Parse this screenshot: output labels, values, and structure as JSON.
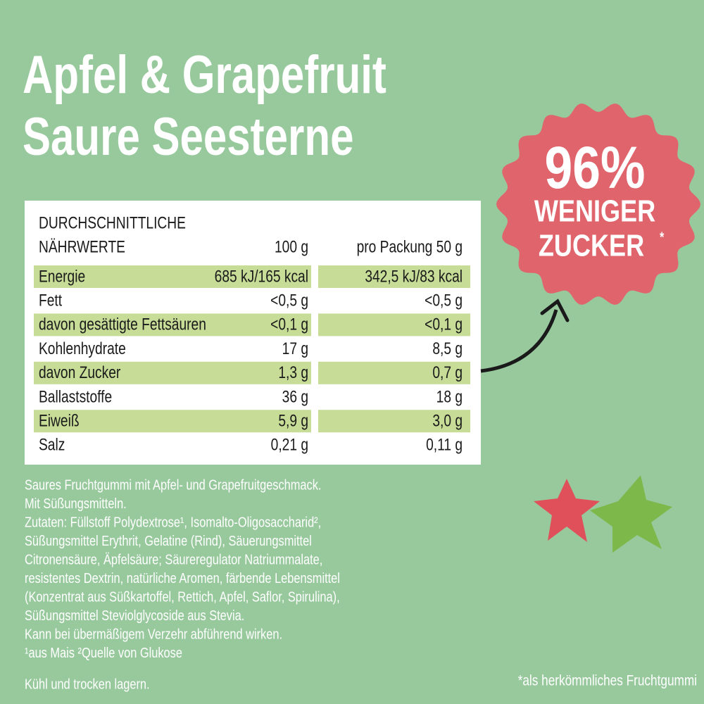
{
  "title": {
    "lines": [
      "Apfel & Grapefruit",
      "Saure Seesterne"
    ]
  },
  "table": {
    "heading": [
      "DURCHSCHNITTLICHE",
      "NÄHRWERTE"
    ],
    "columns": [
      "100 g",
      "pro Packung 50 g"
    ],
    "rows": [
      [
        "Energie",
        "685 kJ/165 kcal",
        "342,5 kJ/83 kcal"
      ],
      [
        "Fett",
        "<0,5 g",
        "<0,5 g"
      ],
      [
        "davon gesättigte Fettsäuren",
        "<0,1 g",
        "<0,1 g"
      ],
      [
        "Kohlenhydrate",
        "17 g",
        "8,5 g"
      ],
      [
        "davon Zucker",
        "1,3 g",
        "0,7 g"
      ],
      [
        "Ballaststoffe",
        "36 g",
        "18 g"
      ],
      [
        "Eiweiß",
        "5,9 g",
        "3,0 g"
      ],
      [
        "Salz",
        "0,21 g",
        "0,11 g"
      ]
    ]
  },
  "description": {
    "lines": [
      "Saures Fruchtgummi mit Apfel- und Grapefruitgeschmack.",
      "Mit Süßungsmitteln.",
      "Zutaten: Füllstoff Polydextrose¹, Isomalto-Oligosaccharid²,",
      "Süßungsmittel Erythrit, Gelatine (Rind), Säuerungsmittel",
      "Citronensäure, Äpfelsäure; Säureregulator Natriummalate,",
      "resistentes Dextrin, natürliche Aromen, färbende Lebensmittel",
      "(Konzentrat aus Süßkartoffel, Rettich, Apfel, Saflor, Spirulina),",
      "Süßungsmittel Steviolglycoside aus Stevia.",
      "Kann bei übermäßigem Verzehr abführend wirken.",
      "¹aus Mais ²Quelle von Glukose"
    ]
  },
  "storage": "Kühl und trocken lagern.",
  "badge": {
    "lines": [
      "96%",
      "WENIGER",
      "ZUCKER"
    ],
    "asterisk": "*"
  },
  "footnote": "*als herkömmliches Fruchtgummi"
}
